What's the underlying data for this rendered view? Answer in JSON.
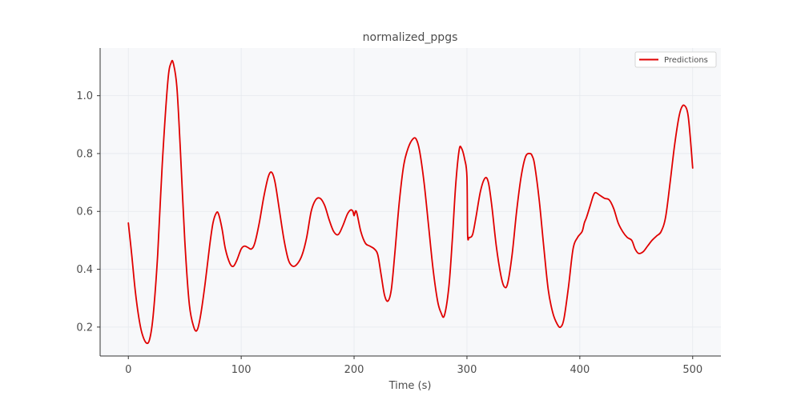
{
  "chart_data": {
    "type": "line",
    "title": "normalized_ppgs",
    "xlabel": "Time (s)",
    "ylabel": "",
    "xlim": [
      -25,
      525
    ],
    "ylim": [
      0.1,
      1.165
    ],
    "xticks": [
      0,
      100,
      200,
      300,
      400,
      500
    ],
    "yticks": [
      0.2,
      0.4,
      0.6,
      0.8,
      1.0
    ],
    "grid": true,
    "legend_position": "top-right",
    "series": [
      {
        "name": "Predictions",
        "color": "#e00000",
        "x": [
          0,
          3,
          6,
          9,
          12,
          16,
          19,
          22,
          26,
          30,
          35,
          38,
          40,
          43,
          46,
          50,
          54,
          58,
          61,
          64,
          68,
          72,
          75,
          78,
          80,
          83,
          86,
          90,
          93,
          96,
          100,
          103,
          106,
          109,
          112,
          116,
          120,
          124,
          127,
          130,
          134,
          138,
          142,
          146,
          150,
          154,
          158,
          162,
          166,
          170,
          174,
          178,
          182,
          186,
          190,
          194,
          197,
          199,
          200,
          202,
          206,
          210,
          214,
          218,
          221,
          224,
          227,
          230,
          233,
          236,
          240,
          244,
          248,
          252,
          255,
          258,
          262,
          266,
          270,
          274,
          277,
          280,
          284,
          287,
          290,
          293,
          295,
          298,
          300,
          300.6,
          302,
          305,
          308,
          312,
          316,
          319,
          322,
          326,
          330,
          333,
          336,
          340,
          344,
          348,
          352,
          356,
          358,
          360,
          364,
          368,
          372,
          376,
          380,
          383,
          386,
          390,
          394,
          398,
          402,
          404,
          406,
          410,
          412,
          414,
          418,
          422,
          426,
          430,
          434,
          438,
          442,
          446,
          449,
          452,
          456,
          460,
          464,
          468,
          472,
          476,
          480,
          484,
          488,
          491,
          494,
          496,
          498,
          500
        ],
        "values": [
          0.56,
          0.45,
          0.33,
          0.24,
          0.18,
          0.145,
          0.16,
          0.24,
          0.45,
          0.76,
          1.05,
          1.115,
          1.11,
          1.03,
          0.82,
          0.5,
          0.28,
          0.2,
          0.19,
          0.24,
          0.35,
          0.48,
          0.56,
          0.595,
          0.59,
          0.54,
          0.47,
          0.42,
          0.41,
          0.43,
          0.47,
          0.48,
          0.475,
          0.47,
          0.49,
          0.56,
          0.65,
          0.72,
          0.735,
          0.7,
          0.6,
          0.5,
          0.43,
          0.41,
          0.42,
          0.45,
          0.51,
          0.6,
          0.64,
          0.645,
          0.62,
          0.57,
          0.53,
          0.52,
          0.55,
          0.59,
          0.605,
          0.6,
          0.585,
          0.6,
          0.53,
          0.49,
          0.48,
          0.47,
          0.45,
          0.38,
          0.31,
          0.29,
          0.33,
          0.45,
          0.63,
          0.76,
          0.82,
          0.85,
          0.85,
          0.81,
          0.7,
          0.55,
          0.4,
          0.29,
          0.25,
          0.24,
          0.34,
          0.5,
          0.69,
          0.81,
          0.82,
          0.78,
          0.72,
          0.52,
          0.51,
          0.52,
          0.58,
          0.67,
          0.715,
          0.7,
          0.62,
          0.48,
          0.38,
          0.34,
          0.35,
          0.45,
          0.6,
          0.72,
          0.79,
          0.8,
          0.79,
          0.76,
          0.64,
          0.48,
          0.33,
          0.25,
          0.21,
          0.2,
          0.23,
          0.34,
          0.47,
          0.51,
          0.53,
          0.56,
          0.58,
          0.63,
          0.655,
          0.665,
          0.655,
          0.645,
          0.64,
          0.61,
          0.56,
          0.53,
          0.51,
          0.5,
          0.47,
          0.455,
          0.46,
          0.48,
          0.5,
          0.515,
          0.53,
          0.58,
          0.7,
          0.83,
          0.93,
          0.965,
          0.96,
          0.93,
          0.85,
          0.75
        ]
      }
    ]
  }
}
